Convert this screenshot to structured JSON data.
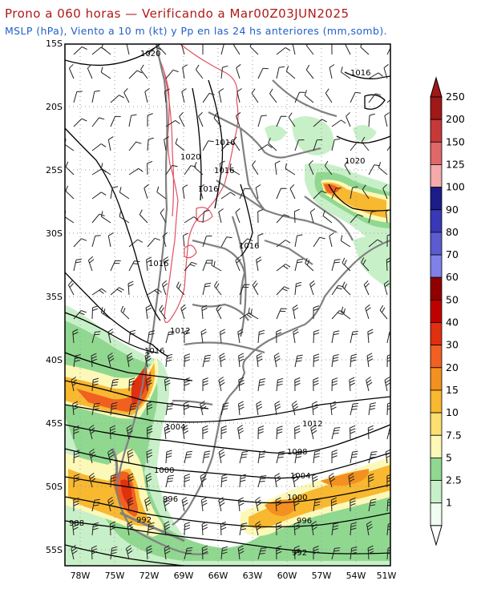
{
  "header": {
    "title": "Prono a 060 horas — Verificando a Mar00Z03JUN2025",
    "subtitle": "MSLP (hPa), Viento a 10 m (kt) y Pp en las 24 hs anteriores (mm,somb)."
  },
  "map": {
    "lat_labels": [
      "15S",
      "20S",
      "25S",
      "30S",
      "35S",
      "40S",
      "45S",
      "50S",
      "55S"
    ],
    "lon_labels": [
      "78W",
      "75W",
      "72W",
      "69W",
      "66W",
      "63W",
      "60W",
      "57W",
      "54W",
      "51W"
    ],
    "isobar_labels": [
      "1020",
      "1016",
      "1016",
      "1020",
      "1016",
      "1016",
      "1020",
      "1016",
      "1016",
      "1012",
      "1016",
      "1004",
      "1012",
      "1008",
      "1000",
      "1004",
      "1000",
      "996",
      "996",
      "992",
      "988",
      "992"
    ],
    "colors": {
      "pressure": "#000000",
      "coast": "#808080",
      "terrain": "#e05060"
    }
  },
  "colorbar": {
    "labels": [
      "250",
      "200",
      "150",
      "125",
      "100",
      "90",
      "80",
      "70",
      "60",
      "50",
      "40",
      "30",
      "20",
      "15",
      "10",
      "7.5",
      "5",
      "2.5",
      "1"
    ],
    "colors": [
      "#a01818",
      "#c83838",
      "#e06868",
      "#f4aaaa",
      "#1c1c88",
      "#3838b8",
      "#5c5cd0",
      "#8080e8",
      "#900000",
      "#c00000",
      "#e03010",
      "#f06020",
      "#f49020",
      "#f8b830",
      "#fce070",
      "#fcf8b8",
      "#90d890",
      "#c8f0c8",
      "#f0fcf0"
    ]
  }
}
